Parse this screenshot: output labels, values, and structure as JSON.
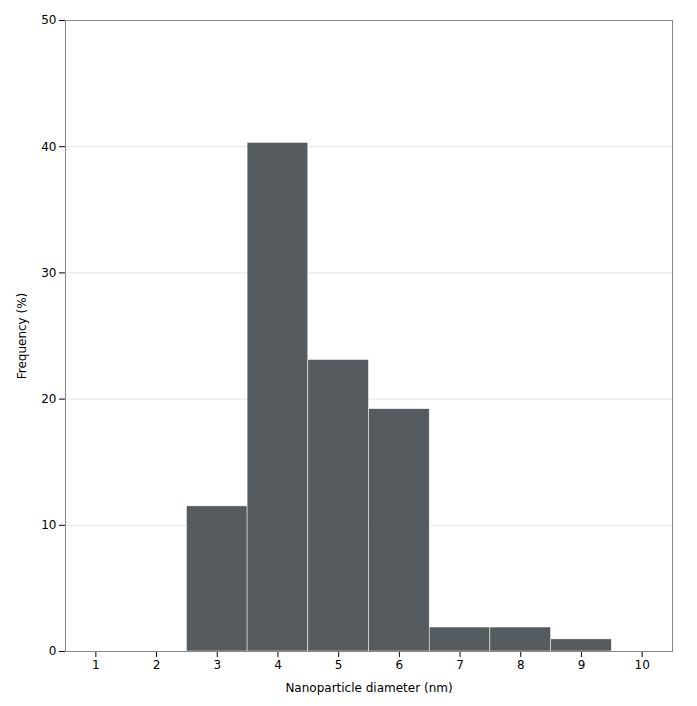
{
  "chart_data": {
    "type": "bar",
    "x": [
      3,
      4,
      5,
      6,
      7,
      8,
      9
    ],
    "values": [
      11.5,
      40.3,
      23.1,
      19.2,
      1.9,
      1.9,
      0.96
    ],
    "color": "#555b5e",
    "xlabel": "Nanoparticle diameter (nm)",
    "ylabel": "Frequency (%)",
    "xlim": [
      0.5,
      10.5
    ],
    "xticks": [
      1,
      2,
      3,
      4,
      5,
      6,
      7,
      8,
      9,
      10
    ],
    "ylim": [
      0,
      50
    ],
    "yticks": [
      0,
      10,
      20,
      30,
      40,
      50
    ],
    "grid": true
  }
}
